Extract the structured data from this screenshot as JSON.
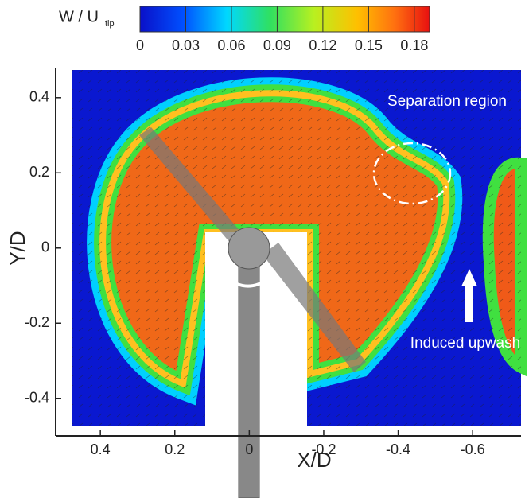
{
  "chart_data": {
    "type": "contour",
    "colorbar": {
      "label": "W / U",
      "label_subscript": "tip",
      "clim": [
        0,
        0.19
      ],
      "ticks": [
        0,
        0.03,
        0.06,
        0.09,
        0.12,
        0.15,
        0.18
      ]
    },
    "xlabel": "X/D",
    "ylabel": "Y/D",
    "xlim": [
      0.52,
      -0.73
    ],
    "xticks": [
      0.4,
      0.2,
      0,
      -0.2,
      -0.4,
      -0.6
    ],
    "ylim": [
      -0.5,
      0.48
    ],
    "yticks": [
      -0.4,
      -0.2,
      0,
      0.2,
      0.4
    ],
    "annotations": [
      "Separation region",
      "Induced upwash"
    ]
  }
}
